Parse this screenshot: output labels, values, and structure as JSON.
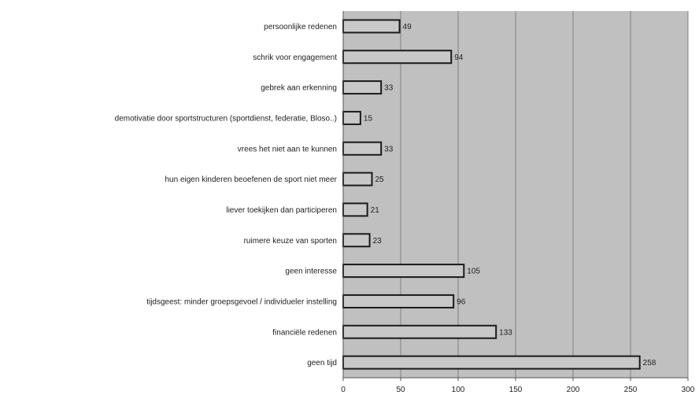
{
  "chart_data": {
    "type": "bar",
    "orientation": "horizontal",
    "categories": [
      "persoonlijke redenen",
      "schrik voor engagement",
      "gebrek aan erkenning",
      "demotivatie door sportstructuren (sportdienst, federatie, Bloso..)",
      "vrees het niet aan te kunnen",
      "hun eigen kinderen beoefenen de sport niet meer",
      "liever toekijken dan participeren",
      "ruimere keuze van sporten",
      "geen interesse",
      "tijdsgeest: minder groepsgevoel / individueler instelling",
      "financiële redenen",
      "geen tijd"
    ],
    "values": [
      49,
      94,
      33,
      15,
      33,
      25,
      21,
      23,
      105,
      96,
      133,
      258
    ],
    "xlim": [
      0,
      300
    ],
    "xticks": [
      0,
      50,
      100,
      150,
      200,
      250,
      300
    ],
    "grid": true,
    "legend": "none",
    "colors": {
      "plot_background": "#c0c0c0",
      "bar_fill": "#c8c8c8",
      "bar_stroke": "#1a1a1a",
      "gridline": "#808080",
      "axis": "#555555"
    }
  }
}
